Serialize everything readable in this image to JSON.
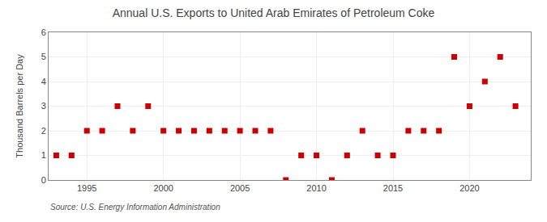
{
  "chart_data": {
    "type": "scatter",
    "title": "Annual U.S. Exports to United Arab Emirates of Petroleum Coke",
    "ylabel": "Thousand Barrels per Day",
    "annotation": "Source: U.S. Energy Information Administration",
    "x": [
      1993,
      1994,
      1995,
      1996,
      1997,
      1998,
      1999,
      2000,
      2001,
      2002,
      2003,
      2004,
      2005,
      2006,
      2007,
      2008,
      2009,
      2010,
      2011,
      2012,
      2013,
      2014,
      2015,
      2016,
      2017,
      2018,
      2019,
      2020,
      2021,
      2022,
      2023
    ],
    "values": [
      1,
      1,
      2,
      2,
      3,
      2,
      3,
      2,
      2,
      2,
      2,
      2,
      2,
      2,
      2,
      0,
      1,
      1,
      0,
      1,
      2,
      1,
      1,
      2,
      2,
      2,
      5,
      3,
      4,
      5,
      3
    ],
    "color": "#cc0000",
    "marker": "square",
    "xlim": [
      1992.5,
      2024
    ],
    "xticks": [
      1995,
      2000,
      2005,
      2010,
      2015,
      2020
    ],
    "ylim": [
      0,
      6
    ],
    "yticks": [
      0,
      1,
      2,
      3,
      4,
      5,
      6
    ],
    "grid": true
  }
}
